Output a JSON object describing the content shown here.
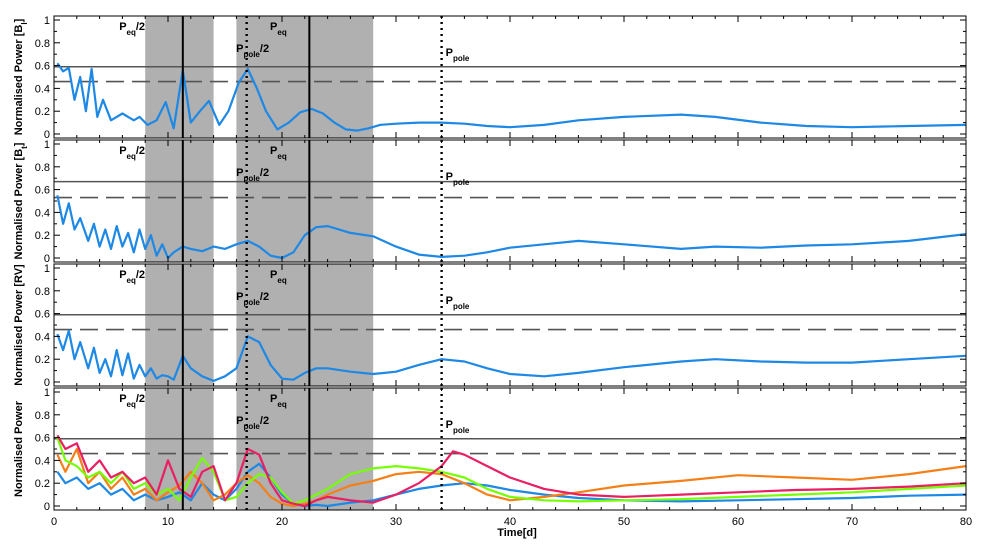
{
  "chart_data": {
    "type": "line",
    "xlabel": "Time[d]",
    "xlim": [
      0,
      80
    ],
    "xticks": [
      "0",
      "10",
      "20",
      "30",
      "40",
      "50",
      "60",
      "70",
      "80"
    ],
    "yticks": [
      "0",
      "0.2",
      "0.4",
      "0.6",
      "0.8",
      "1"
    ],
    "shaded_ranges": [
      [
        8,
        14
      ],
      [
        16,
        28
      ]
    ],
    "solid_vlines": [
      11.3,
      22.4
    ],
    "dotted_vlines": [
      16.9,
      34.0
    ],
    "period_labels": {
      "peq_half": {
        "main": "P",
        "sub": "eq",
        "suffix": "/2",
        "x": 8.0
      },
      "peq": {
        "main": "P",
        "sub": "eq",
        "suffix": "",
        "x": 18.6
      },
      "ppole_half": {
        "main": "P",
        "sub": "pole",
        "suffix": "/2",
        "x": 16.5
      },
      "ppole": {
        "main": "P",
        "sub": "pole",
        "suffix": "",
        "x": 34.0
      }
    },
    "colors": {
      "blue": "#1e88e5",
      "orange": "#f57f17",
      "green": "#76ff03",
      "magenta": "#e91e63",
      "shade": "#b0b0b0",
      "line": "#555555"
    },
    "panels": [
      {
        "ylabel": "Normalised Power [B",
        "ylabel_sub": "l",
        "ylabel_suffix": "]",
        "hline_solid": 0.59,
        "hline_dashed": 0.46,
        "series": [
          {
            "color": "blue",
            "x": [
              0.3,
              0.8,
              1.3,
              1.8,
              2.3,
              2.8,
              3.3,
              3.8,
              4.3,
              5,
              6,
              7,
              7.5,
              8.2,
              9,
              9.8,
              10.5,
              11.3,
              12,
              12.8,
              13.6,
              14.5,
              15.3,
              16.2,
              17,
              17.8,
              18.6,
              19.6,
              20.6,
              21.6,
              22.6,
              23.6,
              24.6,
              25.6,
              26.6,
              27.6,
              28.6,
              30,
              32,
              34,
              36,
              38,
              40,
              43,
              46,
              50,
              55,
              58,
              62,
              66,
              70,
              75,
              80
            ],
            "y": [
              0.62,
              0.55,
              0.58,
              0.3,
              0.5,
              0.2,
              0.57,
              0.15,
              0.3,
              0.12,
              0.18,
              0.12,
              0.15,
              0.08,
              0.12,
              0.28,
              0.05,
              0.56,
              0.1,
              0.2,
              0.29,
              0.08,
              0.2,
              0.45,
              0.57,
              0.4,
              0.2,
              0.04,
              0.1,
              0.19,
              0.22,
              0.18,
              0.1,
              0.04,
              0.03,
              0.05,
              0.08,
              0.09,
              0.1,
              0.1,
              0.09,
              0.07,
              0.06,
              0.08,
              0.12,
              0.15,
              0.17,
              0.15,
              0.1,
              0.07,
              0.06,
              0.07,
              0.08
            ]
          }
        ]
      },
      {
        "ylabel": "Normalised Power [B",
        "ylabel_sub": "t",
        "ylabel_suffix": "]",
        "hline_solid": 0.67,
        "hline_dashed": 0.53,
        "series": [
          {
            "color": "blue",
            "x": [
              0.3,
              0.8,
              1.3,
              1.8,
              2.3,
              3,
              3.5,
              4,
              4.5,
              5,
              5.5,
              6,
              6.5,
              7,
              7.5,
              8,
              8.5,
              9,
              9.5,
              10,
              10.5,
              11.3,
              12,
              13,
              14,
              15,
              16,
              17,
              18,
              19,
              20,
              21,
              22,
              23,
              24,
              26,
              28,
              30,
              32,
              34,
              36,
              38,
              40,
              43,
              46,
              50,
              55,
              58,
              62,
              66,
              70,
              75,
              80
            ],
            "y": [
              0.55,
              0.3,
              0.48,
              0.25,
              0.35,
              0.15,
              0.3,
              0.1,
              0.25,
              0.08,
              0.28,
              0.1,
              0.22,
              0.05,
              0.25,
              0.08,
              0.2,
              0.02,
              0.12,
              0.0,
              0.05,
              0.1,
              0.08,
              0.06,
              0.1,
              0.08,
              0.12,
              0.15,
              0.1,
              0.02,
              0.0,
              0.05,
              0.2,
              0.27,
              0.28,
              0.22,
              0.19,
              0.1,
              0.03,
              0.01,
              0.02,
              0.05,
              0.09,
              0.12,
              0.15,
              0.12,
              0.08,
              0.1,
              0.09,
              0.11,
              0.12,
              0.15,
              0.21
            ]
          }
        ]
      },
      {
        "ylabel": "Normalised Power [RV]",
        "ylabel_sub": "",
        "ylabel_suffix": "",
        "hline_solid": 0.59,
        "hline_dashed": 0.46,
        "series": [
          {
            "color": "blue",
            "x": [
              0.3,
              0.8,
              1.3,
              1.8,
              2.3,
              3,
              3.5,
              4,
              4.5,
              5,
              5.5,
              6,
              6.5,
              7,
              7.5,
              8,
              8.5,
              9,
              9.5,
              10,
              10.5,
              11.3,
              12,
              13,
              14,
              15,
              16,
              17,
              18,
              19,
              20,
              21,
              22,
              23,
              24,
              26,
              28,
              30,
              32,
              34,
              36,
              38,
              40,
              43,
              46,
              50,
              55,
              58,
              62,
              66,
              70,
              75,
              80
            ],
            "y": [
              0.42,
              0.28,
              0.45,
              0.2,
              0.35,
              0.12,
              0.3,
              0.08,
              0.2,
              0.05,
              0.28,
              0.06,
              0.25,
              0.03,
              0.15,
              0.05,
              0.12,
              0.03,
              0.06,
              0.05,
              0.02,
              0.23,
              0.12,
              0.05,
              0.01,
              0.05,
              0.12,
              0.4,
              0.35,
              0.15,
              0.03,
              0.02,
              0.08,
              0.12,
              0.12,
              0.09,
              0.07,
              0.09,
              0.15,
              0.2,
              0.18,
              0.12,
              0.07,
              0.05,
              0.08,
              0.13,
              0.18,
              0.2,
              0.18,
              0.17,
              0.17,
              0.2,
              0.23
            ]
          }
        ]
      },
      {
        "ylabel": "Normalised Power",
        "ylabel_sub": "",
        "ylabel_suffix": "",
        "hline_solid": 0.59,
        "hline_dashed": 0.46,
        "series": [
          {
            "color": "blue",
            "x": [
              0.3,
              1,
              2,
              3,
              4,
              5,
              6,
              7,
              8,
              9,
              10,
              11,
              12,
              13,
              14,
              15,
              16,
              17,
              18,
              19,
              20,
              21,
              22,
              23,
              24,
              26,
              28,
              30,
              32,
              34,
              36,
              38,
              40,
              43,
              46,
              50,
              55,
              60,
              65,
              70,
              75,
              80
            ],
            "y": [
              0.3,
              0.2,
              0.25,
              0.15,
              0.2,
              0.1,
              0.15,
              0.05,
              0.1,
              0.05,
              0.08,
              0.12,
              0.05,
              0.2,
              0.1,
              0.05,
              0.15,
              0.3,
              0.37,
              0.25,
              0.1,
              0.02,
              0.0,
              0.01,
              0.0,
              0.03,
              0.05,
              0.1,
              0.15,
              0.18,
              0.2,
              0.18,
              0.14,
              0.1,
              0.07,
              0.05,
              0.04,
              0.05,
              0.06,
              0.07,
              0.09,
              0.1
            ]
          },
          {
            "color": "orange",
            "x": [
              0.3,
              1,
              2,
              3,
              4,
              5,
              6,
              7,
              8,
              9,
              10,
              11,
              12,
              13,
              14,
              15,
              16,
              17,
              18,
              19,
              20,
              21,
              22,
              23,
              24,
              26,
              28,
              30,
              32,
              34,
              36,
              38,
              40,
              43,
              46,
              50,
              55,
              60,
              65,
              70,
              75,
              80
            ],
            "y": [
              0.45,
              0.3,
              0.5,
              0.2,
              0.3,
              0.15,
              0.25,
              0.1,
              0.15,
              0.05,
              0.12,
              0.18,
              0.3,
              0.2,
              0.05,
              0.1,
              0.2,
              0.27,
              0.2,
              0.08,
              0.02,
              0.0,
              0.02,
              0.05,
              0.1,
              0.18,
              0.22,
              0.28,
              0.3,
              0.28,
              0.2,
              0.1,
              0.05,
              0.08,
              0.12,
              0.18,
              0.22,
              0.27,
              0.25,
              0.23,
              0.28,
              0.35
            ]
          },
          {
            "color": "green",
            "x": [
              0.3,
              1,
              2,
              3,
              4,
              5,
              6,
              7,
              8,
              9,
              10,
              11,
              12,
              13,
              14,
              15,
              16,
              17,
              18,
              19,
              20,
              21,
              22,
              23,
              24,
              26,
              28,
              30,
              32,
              34,
              36,
              38,
              40,
              43,
              46,
              50,
              55,
              60,
              65,
              70,
              75,
              80
            ],
            "y": [
              0.6,
              0.4,
              0.35,
              0.25,
              0.3,
              0.2,
              0.3,
              0.15,
              0.2,
              0.1,
              0.15,
              0.05,
              0.25,
              0.42,
              0.3,
              0.05,
              0.08,
              0.2,
              0.28,
              0.25,
              0.12,
              0.02,
              0.05,
              0.1,
              0.15,
              0.28,
              0.33,
              0.35,
              0.33,
              0.3,
              0.25,
              0.15,
              0.08,
              0.05,
              0.04,
              0.05,
              0.06,
              0.08,
              0.1,
              0.12,
              0.15,
              0.18
            ]
          },
          {
            "color": "magenta",
            "x": [
              0.3,
              1,
              2,
              3,
              4,
              5,
              6,
              7,
              8,
              9,
              10,
              11,
              12,
              13,
              14,
              15,
              16,
              17,
              18,
              19,
              20,
              21,
              22,
              23,
              24,
              26,
              28,
              30,
              32,
              34,
              35,
              36,
              38,
              40,
              43,
              46,
              50,
              55,
              60,
              65,
              70,
              75,
              80
            ],
            "y": [
              0.62,
              0.5,
              0.55,
              0.3,
              0.4,
              0.25,
              0.3,
              0.2,
              0.25,
              0.1,
              0.4,
              0.15,
              0.08,
              0.3,
              0.35,
              0.05,
              0.2,
              0.5,
              0.45,
              0.2,
              0.05,
              0.02,
              0.0,
              0.05,
              0.08,
              0.05,
              0.03,
              0.1,
              0.2,
              0.35,
              0.48,
              0.45,
              0.35,
              0.25,
              0.15,
              0.1,
              0.08,
              0.1,
              0.12,
              0.14,
              0.15,
              0.17,
              0.2
            ]
          }
        ]
      }
    ]
  }
}
